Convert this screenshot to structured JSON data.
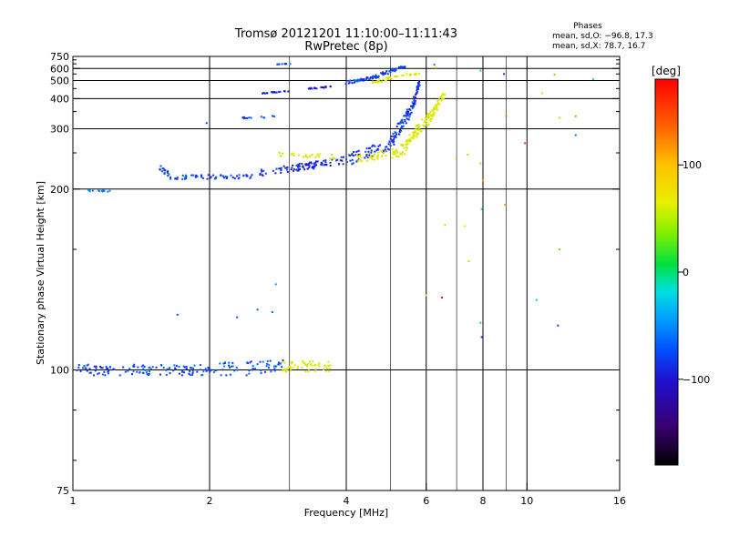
{
  "header": {
    "title_line1": "Tromsø 20121201 11:10:00–11:11:43",
    "title_line2": "RwPretec (8p)",
    "phases_title": "Phases",
    "stats_o": "mean, sd,O: −96.8, 17.3",
    "stats_x": "mean, sd,X:  78.7, 16.7"
  },
  "colorbar": {
    "label": "[deg]",
    "tick_labels": [
      "100",
      "0",
      "−100"
    ],
    "tick_values": [
      100,
      0,
      -100
    ],
    "range": [
      -180,
      180
    ]
  },
  "chart_data": {
    "type": "scatter",
    "xlabel": "Frequency [MHz]",
    "ylabel": "Stationary phase Virtual Height [km]",
    "xscale": "log",
    "yscale": "reciprocal",
    "xlim": [
      1,
      16
    ],
    "ylim": [
      75,
      750
    ],
    "grid": true,
    "xticks": [
      1,
      2,
      4,
      6,
      8,
      10,
      16
    ],
    "xtick_labels": [
      "1",
      "2",
      "4",
      "6",
      "8",
      "10",
      "16"
    ],
    "xminor_ticks": [
      3,
      5,
      7,
      9
    ],
    "yticks": [
      75,
      100,
      200,
      300,
      400,
      500,
      600,
      750
    ],
    "ytick_labels": [
      "75",
      "100",
      "200",
      "300",
      "400",
      "500",
      "600",
      "750"
    ],
    "ygrid_lines": [
      100,
      200,
      300,
      400,
      500,
      600
    ],
    "colorbar_quantity": "phase [deg]",
    "segments": [
      {
        "x": [
          1.0,
          1.3
        ],
        "h": [
          100,
          100
        ],
        "phase": -115,
        "n": 40,
        "jh": 0.015
      },
      {
        "x": [
          1.3,
          2.0
        ],
        "h": [
          100,
          100
        ],
        "phase": -110,
        "n": 80,
        "jh": 0.015
      },
      {
        "x": [
          2.0,
          2.9
        ],
        "h": [
          100,
          101
        ],
        "phase": -110,
        "n": 60,
        "jh": 0.02
      },
      {
        "x": [
          2.9,
          3.7
        ],
        "h": [
          101,
          101
        ],
        "phase": 90,
        "n": 55,
        "jh": 0.015
      },
      {
        "x": [
          1.08,
          1.22
        ],
        "h": [
          198,
          198
        ],
        "phase": -95,
        "n": 12,
        "jh": 0.005
      },
      {
        "x": [
          1.55,
          1.65
        ],
        "h": [
          228,
          214
        ],
        "phase": -115,
        "n": 18,
        "jh": 0.015
      },
      {
        "x": [
          1.65,
          2.5
        ],
        "h": [
          214,
          215
        ],
        "phase": -115,
        "n": 55,
        "jh": 0.012
      },
      {
        "x": [
          2.5,
          3.6
        ],
        "h": [
          218,
          233
        ],
        "phase": -120,
        "n": 55,
        "jh": 0.02
      },
      {
        "x": [
          3.0,
          4.0
        ],
        "h": [
          225,
          238
        ],
        "phase": -130,
        "n": 45,
        "jh": 0.025
      },
      {
        "x": [
          2.8,
          3.8
        ],
        "h": [
          248,
          243
        ],
        "phase": 95,
        "n": 25,
        "jh": 0.015
      },
      {
        "x": [
          4.0,
          5.0
        ],
        "h": [
          238,
          265
        ],
        "phase": -120,
        "n": 60,
        "jh": 0.04
      },
      {
        "x": [
          5.0,
          5.6
        ],
        "h": [
          265,
          360
        ],
        "phase": -118,
        "n": 70,
        "jh": 0.05
      },
      {
        "x": [
          5.6,
          5.8
        ],
        "h": [
          360,
          480
        ],
        "phase": -118,
        "n": 45,
        "jh": 0.04
      },
      {
        "x": [
          4.2,
          5.3
        ],
        "h": [
          238,
          252
        ],
        "phase": 92,
        "n": 50,
        "jh": 0.03
      },
      {
        "x": [
          5.3,
          6.1
        ],
        "h": [
          252,
          330
        ],
        "phase": 92,
        "n": 75,
        "jh": 0.05
      },
      {
        "x": [
          6.1,
          6.6
        ],
        "h": [
          330,
          420
        ],
        "phase": 95,
        "n": 45,
        "jh": 0.04
      },
      {
        "x": [
          2.6,
          3.0
        ],
        "h": [
          425,
          438
        ],
        "phase": -125,
        "n": 18,
        "jh": 0.008
      },
      {
        "x": [
          3.3,
          3.7
        ],
        "h": [
          448,
          462
        ],
        "phase": -130,
        "n": 20,
        "jh": 0.01
      },
      {
        "x": [
          4.0,
          4.6
        ],
        "h": [
          485,
          522
        ],
        "phase": -115,
        "n": 40,
        "jh": 0.02
      },
      {
        "x": [
          4.6,
          5.4
        ],
        "h": [
          522,
          620
        ],
        "phase": -118,
        "n": 45,
        "jh": 0.025
      },
      {
        "x": [
          4.5,
          5.8
        ],
        "h": [
          485,
          560
        ],
        "phase": 92,
        "n": 40,
        "jh": 0.02
      },
      {
        "x": [
          2.8,
          3.1
        ],
        "h": [
          645,
          652
        ],
        "phase": -110,
        "n": 8,
        "jh": 0.004
      },
      {
        "x": [
          2.35,
          2.8
        ],
        "h": [
          330,
          335
        ],
        "phase": -115,
        "n": 12,
        "jh": 0.01
      }
    ],
    "outliers": [
      {
        "x": 1.97,
        "h": 315,
        "phase": -110
      },
      {
        "x": 6.25,
        "h": 640,
        "phase": -90
      },
      {
        "x": 6.3,
        "h": 610,
        "phase": 115
      },
      {
        "x": 7.9,
        "h": 580,
        "phase": -20
      },
      {
        "x": 8.9,
        "h": 550,
        "phase": -120
      },
      {
        "x": 11.5,
        "h": 545,
        "phase": 40
      },
      {
        "x": 14.0,
        "h": 510,
        "phase": -30
      },
      {
        "x": 10.8,
        "h": 425,
        "phase": 110
      },
      {
        "x": 9.0,
        "h": 335,
        "phase": 150
      },
      {
        "x": 11.8,
        "h": 330,
        "phase": 115
      },
      {
        "x": 12.8,
        "h": 335,
        "phase": 150
      },
      {
        "x": 12.8,
        "h": 285,
        "phase": -100
      },
      {
        "x": 9.9,
        "h": 268,
        "phase": 170
      },
      {
        "x": 7.0,
        "h": 240,
        "phase": 140
      },
      {
        "x": 7.4,
        "h": 247,
        "phase": 120
      },
      {
        "x": 8.0,
        "h": 210,
        "phase": 140
      },
      {
        "x": 7.9,
        "h": 233,
        "phase": 125
      },
      {
        "x": 7.95,
        "h": 180,
        "phase": -40
      },
      {
        "x": 8.95,
        "h": 184,
        "phase": 145
      },
      {
        "x": 6.6,
        "h": 167,
        "phase": 110
      },
      {
        "x": 7.3,
        "h": 166,
        "phase": 100
      },
      {
        "x": 7.45,
        "h": 143,
        "phase": 70
      },
      {
        "x": 6.5,
        "h": 125,
        "phase": 180
      },
      {
        "x": 6.0,
        "h": 126,
        "phase": 100
      },
      {
        "x": 7.9,
        "h": 115,
        "phase": -50
      },
      {
        "x": 7.95,
        "h": 110,
        "phase": -120
      },
      {
        "x": 11.8,
        "h": 150,
        "phase": 40
      },
      {
        "x": 10.5,
        "h": 124,
        "phase": -20
      },
      {
        "x": 11.7,
        "h": 114,
        "phase": -120
      },
      {
        "x": 2.8,
        "h": 131,
        "phase": -80
      },
      {
        "x": 2.75,
        "h": 119,
        "phase": -100
      },
      {
        "x": 1.7,
        "h": 118,
        "phase": -110
      },
      {
        "x": 2.3,
        "h": 117,
        "phase": -110
      },
      {
        "x": 2.55,
        "h": 120,
        "phase": -105
      },
      {
        "x": 2.85,
        "h": 250,
        "phase": 60
      }
    ]
  }
}
